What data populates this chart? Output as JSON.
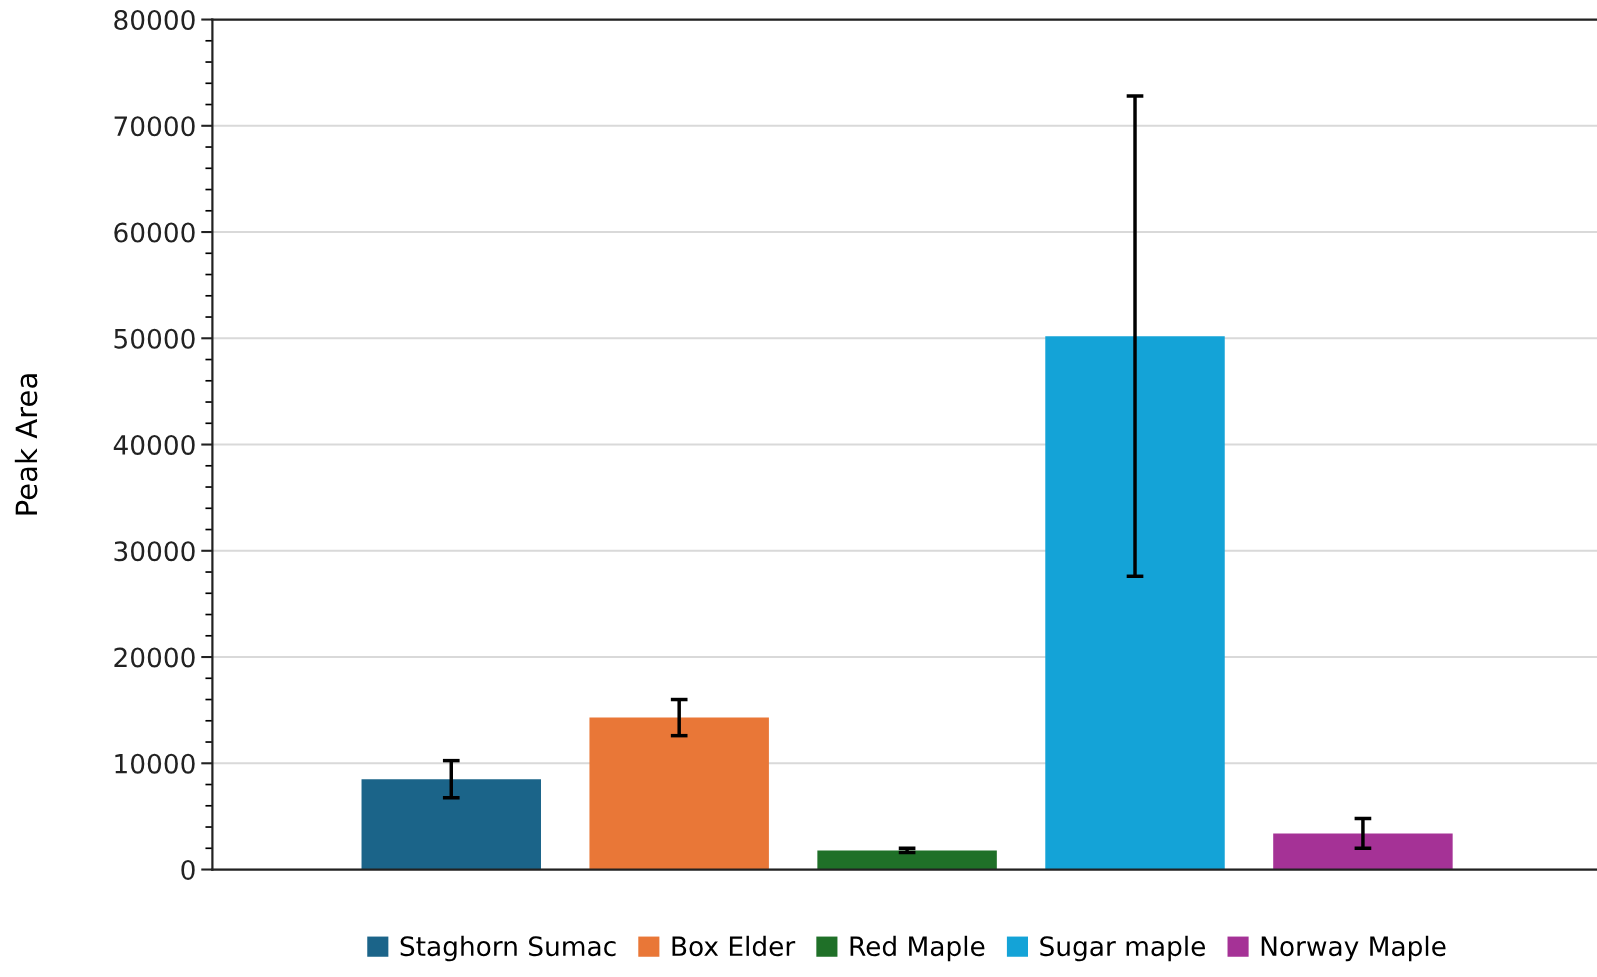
{
  "chart_data": {
    "type": "bar",
    "ylabel": "Peak Area",
    "categories": [
      null
    ],
    "series": [
      {
        "name": "Staghorn Sumac",
        "color": "#1b6489",
        "values": [
          8500
        ],
        "errors": [
          1750
        ]
      },
      {
        "name": "Box Elder",
        "color": "#e97737",
        "values": [
          14300
        ],
        "errors": [
          1700
        ]
      },
      {
        "name": "Red Maple",
        "color": "#1f7028",
        "values": [
          1800
        ],
        "errors": [
          200
        ]
      },
      {
        "name": "Sugar maple",
        "color": "#14a3d7",
        "values": [
          50200
        ],
        "errors": [
          22600
        ]
      },
      {
        "name": "Norway Maple",
        "color": "#a53296",
        "values": [
          3400
        ],
        "errors": [
          1400
        ]
      }
    ],
    "ylim": [
      0,
      80000
    ],
    "yticks": [
      0,
      10000,
      20000,
      30000,
      40000,
      50000,
      60000,
      70000,
      80000
    ],
    "grid": "y",
    "legend": "bottom"
  }
}
